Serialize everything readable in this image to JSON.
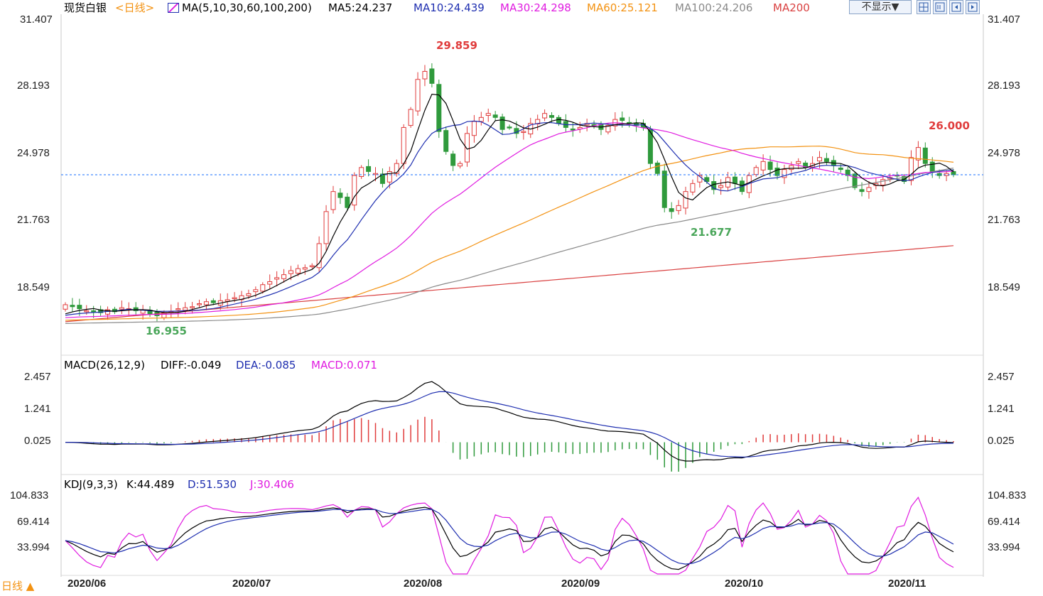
{
  "header": {
    "instrument": "现货白银",
    "period": "<日线>",
    "ma_group": "MA(5,10,30,60,100,200)",
    "ma_values": [
      {
        "text": "MA5:24.237",
        "color": "#000000"
      },
      {
        "text": "MA10:24.439",
        "color": "#1f2fb0"
      },
      {
        "text": "MA30:24.298",
        "color": "#e01be0"
      },
      {
        "text": "MA60:25.121",
        "color": "#f39212"
      },
      {
        "text": "MA100:24.206",
        "color": "#8a8a8a"
      },
      {
        "text": "MA200",
        "color": "#d94040"
      }
    ],
    "hide_button": "不显示▼",
    "toolbar_icons": [
      "grid-icon",
      "panel-icon",
      "panel-left-icon",
      "panel-right-icon"
    ]
  },
  "macd_header": {
    "label": "MACD(26,12,9)",
    "diff": "DIFF:-0.049",
    "dea": "DEA:-0.085",
    "macd": "MACD:0.071"
  },
  "kdj_header": {
    "label": "KDJ(9,3,3)",
    "k": "K:44.489",
    "d": "D:51.530",
    "j": "J:30.406"
  },
  "period_selector": "日线 ▲",
  "colors": {
    "up": "#e03c3c",
    "down": "#2f9a3c",
    "ma5": "#000000",
    "ma10": "#1f2fb0",
    "ma30": "#e01be0",
    "ma60": "#f39212",
    "ma100": "#8a8a8a",
    "ma200": "#d94040",
    "current_price": "#1a6fff"
  },
  "chart_data": [
    {
      "type": "candlestick",
      "title": "现货白银 日线",
      "y_ticks": [
        "31.407",
        "28.193",
        "24.978",
        "21.763",
        "18.549"
      ],
      "ylim": [
        15.3,
        31.9
      ],
      "x_ticks": [
        "2020/06",
        "2020/07",
        "2020/08",
        "2020/09",
        "2020/10",
        "2020/11"
      ],
      "closes": [
        17.75,
        17.65,
        17.55,
        17.45,
        17.4,
        17.35,
        17.5,
        17.4,
        17.6,
        17.55,
        17.45,
        17.5,
        17.3,
        17.2,
        17.35,
        17.4,
        17.55,
        17.6,
        17.65,
        17.8,
        17.9,
        17.85,
        17.95,
        18.0,
        18.1,
        18.2,
        18.3,
        18.5,
        18.75,
        18.9,
        19.1,
        19.25,
        19.45,
        19.55,
        19.6,
        19.7,
        20.8,
        22.4,
        23.4,
        23.1,
        22.6,
        24.2,
        24.6,
        24.4,
        24.3,
        23.8,
        24.4,
        24.8,
        26.6,
        27.5,
        29.0,
        29.4,
        28.8,
        26.4,
        25.4,
        24.7,
        24.8,
        26.3,
        26.9,
        27.1,
        27.3,
        27.1,
        26.5,
        26.6,
        26.3,
        26.4,
        26.8,
        27.0,
        27.3,
        27.1,
        26.8,
        26.6,
        26.5,
        26.6,
        26.8,
        26.7,
        26.5,
        26.7,
        27.0,
        26.95,
        26.8,
        26.7,
        26.6,
        24.8,
        24.3,
        22.6,
        22.4,
        22.7,
        23.4,
        23.8,
        24.2,
        23.9,
        23.5,
        23.7,
        24.1,
        23.8,
        23.4,
        24.2,
        24.6,
        24.9,
        24.5,
        24.2,
        24.5,
        24.7,
        24.9,
        24.6,
        24.8,
        25.1,
        24.9,
        24.7,
        24.5,
        24.2,
        23.6,
        23.4,
        23.6,
        23.8,
        24.0,
        24.1,
        24.2,
        23.9,
        25.1,
        25.6,
        24.8,
        24.4,
        24.2,
        24.3,
        24.24
      ],
      "markers": [
        {
          "label": "29.859",
          "value": 29.859
        },
        {
          "label": "26.000",
          "value": 26.0
        },
        {
          "label": "21.677",
          "value": 21.677
        },
        {
          "label": "16.955",
          "value": 16.955
        }
      ],
      "current_price": 24.237,
      "ma_end_values": {
        "MA5": 24.237,
        "MA10": 24.439,
        "MA30": 24.298,
        "MA60": 25.121,
        "MA100": 24.206,
        "MA200": 20.7
      }
    },
    {
      "type": "line+bar",
      "title": "MACD(26,12,9)",
      "y_ticks": [
        "2.457",
        "1.241",
        "0.025"
      ],
      "ylim": [
        -1.2,
        2.9
      ],
      "series": [
        "DIFF",
        "DEA",
        "MACD"
      ],
      "last_values": {
        "DIFF": -0.049,
        "DEA": -0.085,
        "MACD": 0.071
      }
    },
    {
      "type": "line",
      "title": "KDJ(9,3,3)",
      "y_ticks": [
        "104.833",
        "69.414",
        "33.994"
      ],
      "ylim": [
        5,
        120
      ],
      "series": [
        "K",
        "D",
        "J"
      ],
      "last_values": {
        "K": 44.489,
        "D": 51.53,
        "J": 30.406
      }
    }
  ]
}
